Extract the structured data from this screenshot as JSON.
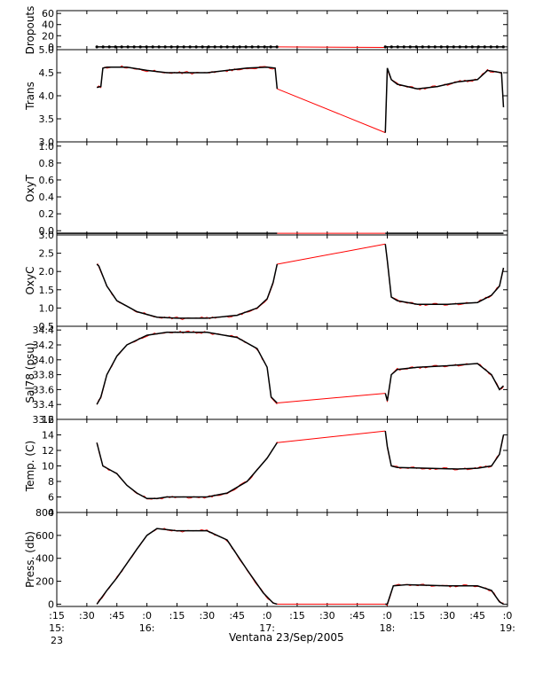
{
  "chart_data": {
    "type": "line",
    "xlabel": "Ventana 23/Sep/2005",
    "colors": {
      "data": "#000000",
      "gap": "#ff0000",
      "frame": "#000000"
    },
    "x_ticks": [
      {
        "value": "15:15",
        "major": ":15",
        "minor": "15:",
        "day": "23"
      },
      {
        "value": "15:30",
        "major": ":30",
        "minor": "",
        "day": ""
      },
      {
        "value": "15:45",
        "major": ":45",
        "minor": "",
        "day": ""
      },
      {
        "value": "16:00",
        "major": ":0",
        "minor": "16:",
        "day": ""
      },
      {
        "value": "16:15",
        "major": ":15",
        "minor": "",
        "day": ""
      },
      {
        "value": "16:30",
        "major": ":30",
        "minor": "",
        "day": ""
      },
      {
        "value": "16:45",
        "major": ":45",
        "minor": "",
        "day": ""
      },
      {
        "value": "17:00",
        "major": ":0",
        "minor": "17:",
        "day": ""
      },
      {
        "value": "17:15",
        "major": ":15",
        "minor": "",
        "day": ""
      },
      {
        "value": "17:30",
        "major": ":30",
        "minor": "",
        "day": ""
      },
      {
        "value": "17:45",
        "major": ":45",
        "minor": "",
        "day": ""
      },
      {
        "value": "18:00",
        "major": ":0",
        "minor": "18:",
        "day": ""
      },
      {
        "value": "18:15",
        "major": ":15",
        "minor": "",
        "day": ""
      },
      {
        "value": "18:30",
        "major": ":30",
        "minor": "",
        "day": ""
      },
      {
        "value": "18:45",
        "major": ":45",
        "minor": "",
        "day": ""
      },
      {
        "value": "19:00",
        "major": ":0",
        "minor": "19:",
        "day": ""
      }
    ],
    "xlim": [
      "15:15",
      "19:00"
    ],
    "gap": {
      "start": "17:05",
      "end": "17:59"
    },
    "panels": [
      {
        "ylabel": "Dropouts",
        "ylim": [
          -5,
          65
        ],
        "yticks": [
          0,
          20,
          40,
          60
        ],
        "tick_labels": [
          "0",
          "20",
          "40",
          "60"
        ],
        "style": "dots",
        "seg1": {
          "x": [
            "15:35",
            "17:05"
          ],
          "y": [
            0,
            0
          ]
        },
        "seg2": {
          "x": [
            "17:59",
            "18:58"
          ],
          "y": [
            0,
            0
          ]
        },
        "gap_line": {
          "x": [
            "17:05",
            "17:59"
          ],
          "y": [
            0,
            -1
          ]
        }
      },
      {
        "ylabel": "Trans",
        "ylim": [
          3.0,
          5.0
        ],
        "yticks": [
          3.0,
          3.5,
          4.0,
          4.5,
          5.0
        ],
        "tick_labels": [
          "3.0",
          "3.5",
          "4.0",
          "4.5",
          "5.0"
        ],
        "seg1": {
          "x": [
            "15:35",
            "15:37",
            "15:38",
            "15:40",
            "15:50",
            "16:00",
            "16:10",
            "16:20",
            "16:30",
            "16:40",
            "16:50",
            "17:00",
            "17:04",
            "17:05"
          ],
          "y": [
            4.18,
            4.2,
            4.6,
            4.62,
            4.62,
            4.55,
            4.5,
            4.5,
            4.5,
            4.55,
            4.6,
            4.62,
            4.6,
            4.15
          ]
        },
        "seg2": {
          "x": [
            "17:59",
            "18:00",
            "18:02",
            "18:05",
            "18:15",
            "18:25",
            "18:35",
            "18:45",
            "18:50",
            "18:57",
            "18:58"
          ],
          "y": [
            3.2,
            4.6,
            4.35,
            4.25,
            4.15,
            4.2,
            4.3,
            4.35,
            4.55,
            4.5,
            3.75
          ]
        },
        "gap_line": {
          "x": [
            "17:05",
            "17:59"
          ],
          "y": [
            4.15,
            3.2
          ]
        }
      },
      {
        "ylabel": "OxyT",
        "ylim": [
          -0.05,
          1.05
        ],
        "yticks": [
          0.0,
          0.2,
          0.4,
          0.6,
          0.8,
          1.0
        ],
        "tick_labels": [
          "0.0",
          "0.2",
          "0.4",
          "0.6",
          "0.8",
          "1.0"
        ],
        "seg1": {
          "x": [
            "15:15",
            "17:05"
          ],
          "y": [
            -0.03,
            -0.03
          ]
        },
        "seg2": {
          "x": [
            "17:59",
            "18:58"
          ],
          "y": [
            -0.03,
            -0.03
          ]
        },
        "gap_line": {
          "x": [
            "17:05",
            "17:59"
          ],
          "y": [
            -0.03,
            -0.03
          ]
        }
      },
      {
        "ylabel": "OxyC",
        "ylim": [
          0.5,
          3.0
        ],
        "yticks": [
          0.5,
          1.0,
          1.5,
          2.0,
          2.5,
          3.0
        ],
        "tick_labels": [
          "0.5",
          "1.0",
          "1.5",
          "2.0",
          "2.5",
          "3.0"
        ],
        "seg1": {
          "x": [
            "15:35",
            "15:36",
            "15:40",
            "15:45",
            "15:50",
            "15:55",
            "16:05",
            "16:15",
            "16:30",
            "16:45",
            "16:55",
            "17:00",
            "17:03",
            "17:05"
          ],
          "y": [
            2.2,
            2.15,
            1.6,
            1.2,
            1.05,
            0.9,
            0.75,
            0.72,
            0.72,
            0.8,
            1.0,
            1.25,
            1.7,
            2.2
          ]
        },
        "seg2": {
          "x": [
            "17:59",
            "18:00",
            "18:02",
            "18:05",
            "18:15",
            "18:30",
            "18:45",
            "18:52",
            "18:56",
            "18:58"
          ],
          "y": [
            2.75,
            2.3,
            1.3,
            1.2,
            1.1,
            1.1,
            1.15,
            1.35,
            1.6,
            2.1
          ]
        },
        "gap_line": {
          "x": [
            "17:05",
            "17:59"
          ],
          "y": [
            2.2,
            2.75
          ]
        }
      },
      {
        "ylabel": "Sal78 (psu)",
        "ylim": [
          33.2,
          34.45
        ],
        "yticks": [
          33.2,
          33.4,
          33.6,
          33.8,
          34.0,
          34.2,
          34.4
        ],
        "tick_labels": [
          "33.2",
          "33.4",
          "33.6",
          "33.8",
          "34.0",
          "34.2",
          "34.4"
        ],
        "seg1": {
          "x": [
            "15:35",
            "15:37",
            "15:40",
            "15:45",
            "15:50",
            "16:00",
            "16:10",
            "16:30",
            "16:45",
            "16:55",
            "17:00",
            "17:02",
            "17:05"
          ],
          "y": [
            33.4,
            33.5,
            33.8,
            34.05,
            34.2,
            34.33,
            34.37,
            34.37,
            34.3,
            34.15,
            33.9,
            33.5,
            33.42
          ]
        },
        "seg2": {
          "x": [
            "17:59",
            "18:00",
            "18:02",
            "18:05",
            "18:15",
            "18:30",
            "18:45",
            "18:52",
            "18:56",
            "18:58"
          ],
          "y": [
            33.55,
            33.45,
            33.8,
            33.87,
            33.9,
            33.92,
            33.95,
            33.8,
            33.6,
            33.65
          ]
        },
        "gap_line": {
          "x": [
            "17:05",
            "17:59"
          ],
          "y": [
            33.42,
            33.55
          ]
        }
      },
      {
        "ylabel": "Temp. (C)",
        "ylim": [
          4,
          16
        ],
        "yticks": [
          4,
          6,
          8,
          10,
          12,
          14,
          16
        ],
        "tick_labels": [
          "4",
          "6",
          "8",
          "10",
          "12",
          "14",
          "16"
        ],
        "seg1": {
          "x": [
            "15:35",
            "15:36",
            "15:38",
            "15:45",
            "15:50",
            "15:55",
            "16:00",
            "16:05",
            "16:10",
            "16:30",
            "16:40",
            "16:50",
            "17:00",
            "17:05"
          ],
          "y": [
            13.0,
            12.0,
            10.0,
            9.0,
            7.5,
            6.5,
            5.8,
            5.8,
            6.0,
            6.0,
            6.5,
            8.0,
            11.0,
            13.0
          ]
        },
        "seg2": {
          "x": [
            "17:59",
            "18:00",
            "18:02",
            "18:05",
            "18:20",
            "18:35",
            "18:45",
            "18:52",
            "18:56",
            "18:58"
          ],
          "y": [
            14.5,
            12.5,
            10.0,
            9.8,
            9.7,
            9.6,
            9.7,
            10.0,
            11.5,
            14.0
          ]
        },
        "gap_line": {
          "x": [
            "17:05",
            "17:59"
          ],
          "y": [
            13.0,
            14.5
          ]
        }
      },
      {
        "ylabel": "Press. (db)",
        "ylim": [
          -20,
          800
        ],
        "yticks": [
          0,
          200,
          400,
          600,
          800
        ],
        "tick_labels": [
          "0",
          "200",
          "400",
          "600",
          "800"
        ],
        "seg1": {
          "x": [
            "15:35",
            "15:40",
            "15:45",
            "15:55",
            "16:00",
            "16:05",
            "16:10",
            "16:15",
            "16:30",
            "16:40",
            "16:50",
            "16:58",
            "17:03",
            "17:05"
          ],
          "y": [
            0,
            120,
            230,
            480,
            600,
            660,
            650,
            640,
            640,
            560,
            300,
            100,
            10,
            0
          ]
        },
        "seg2": {
          "x": [
            "17:59",
            "18:00",
            "18:03",
            "18:10",
            "18:30",
            "18:45",
            "18:52",
            "18:56",
            "18:58"
          ],
          "y": [
            0,
            0,
            160,
            170,
            160,
            160,
            120,
            20,
            0
          ]
        },
        "gap_line": {
          "x": [
            "17:05",
            "17:59"
          ],
          "y": [
            0,
            0
          ]
        }
      }
    ]
  }
}
